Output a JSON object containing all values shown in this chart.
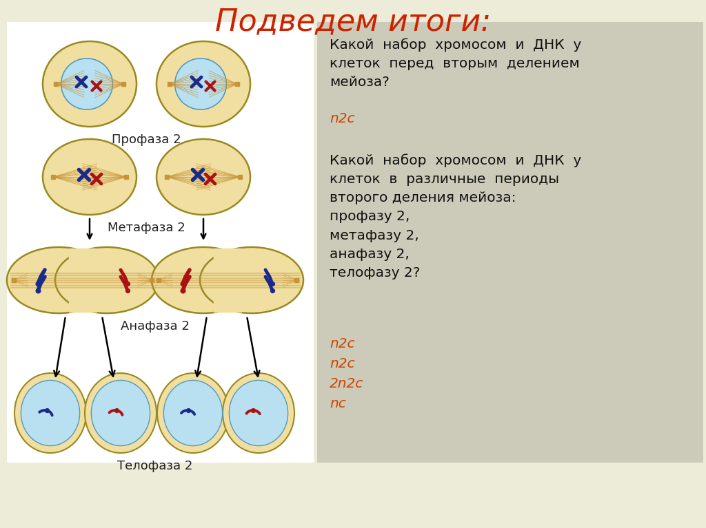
{
  "title": "Подведем итоги:",
  "title_color": "#CC2200",
  "title_fontsize": 32,
  "bg_color": "#EDECD8",
  "right_panel_color": "#CCCAB8",
  "left_panel_color": "#FFFFFF",
  "question1": "Какой  набор  хромосом  и  ДНК  у\nклеток  перед  вторым  делением\nмейоза?",
  "answer1": "n2c",
  "question2": "Какой  набор  хромосом  и  ДНК  у\nклеток  в  различные  периоды\nвторого деления мейоза:\nпрофазу 2,\nметафазу 2,\nанафазу 2,\nтелофазу 2?",
  "answers2": [
    "n2c",
    "n2c",
    "2n2c",
    "nc"
  ],
  "answer_color": "#CC4400",
  "text_color": "#111111",
  "label_profaza": "Профаза 2",
  "label_metafaza": "Метафаза 2",
  "label_anafaza": "Анафаза 2",
  "label_telofaza": "Телофаза 2",
  "cell_yellow": "#F0DFA0",
  "cell_blue_nucleus": "#B8E0F0",
  "chrom_blue": "#1A2A8A",
  "chrom_red": "#AA1111",
  "spindle_color": "#C8943A"
}
